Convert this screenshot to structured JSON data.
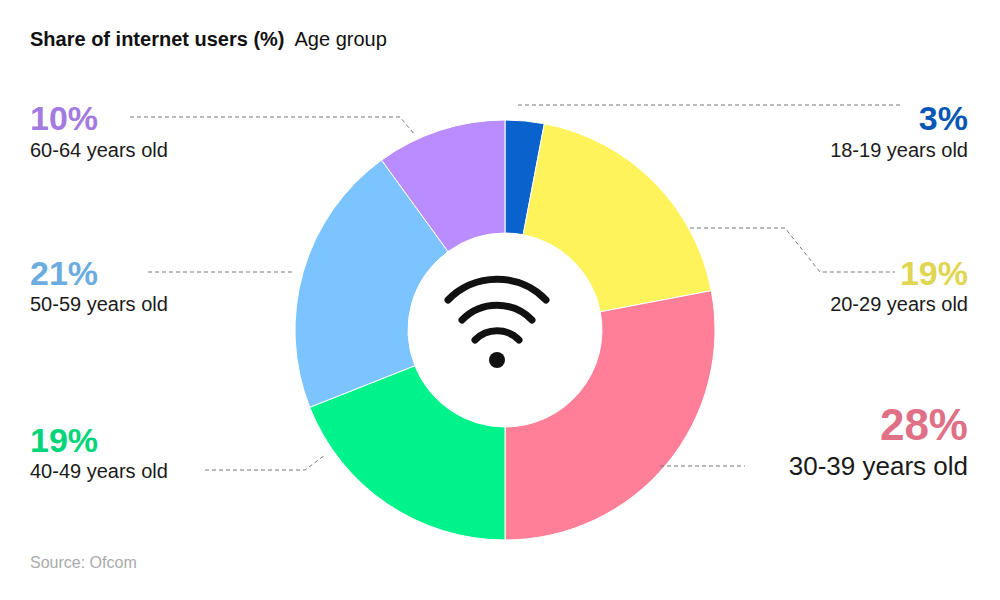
{
  "chart_data": {
    "type": "pie",
    "title": "Share of internet users (%)",
    "subtitle": "Age group",
    "categories": [
      "18-19 years old",
      "20-29 years old",
      "30-39 years old",
      "40-49 years old",
      "50-59 years old",
      "60-64 years old"
    ],
    "values": [
      3,
      19,
      28,
      19,
      21,
      10
    ],
    "value_labels": [
      "3%",
      "19%",
      "28%",
      "19%",
      "21%",
      "10%"
    ],
    "colors": [
      "#0a63cc",
      "#fff35c",
      "#ff7f98",
      "#00f28a",
      "#7cc4ff",
      "#b98cff"
    ],
    "data_labels": true,
    "annotations": [
      "Source: Ofcom"
    ]
  }
}
